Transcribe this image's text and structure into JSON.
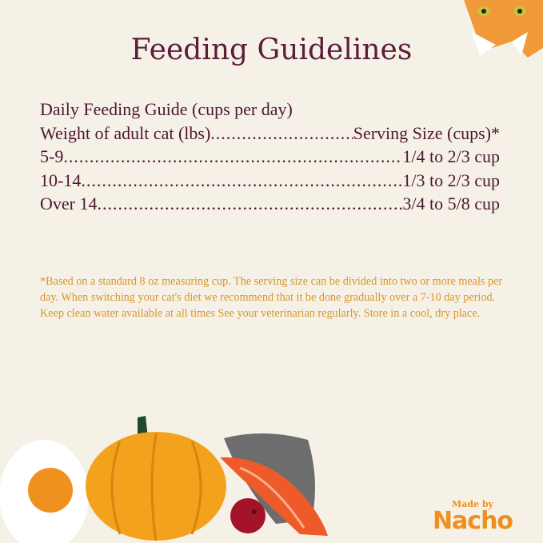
{
  "title": "Feeding Guidelines",
  "guide": {
    "heading": "Daily Feeding Guide (cups per day)",
    "header_left": "Weight of adult cat (lbs)",
    "header_right": "Serving Size (cups)*",
    "rows": [
      {
        "weight": "5-9",
        "serving": "1/4 to 2/3 cup"
      },
      {
        "weight": "10-14",
        "serving": "1/3 to 2/3 cup"
      },
      {
        "weight": "Over 14",
        "serving": "3/4 to 5/8 cup"
      }
    ]
  },
  "footnote": "*Based on a standard 8 oz measuring cup. The serving size can be divided into two or more meals per day. When switching your cat's diet we recommend that it be done gradually over a 7-10 day period. Keep clean water available at all times See your veterinarian regularly. Store in a cool, dry place.",
  "logo": {
    "made_by": "Made by",
    "brand": "Nacho"
  },
  "colors": {
    "background": "#f6f1e7",
    "title": "#5b1d3c",
    "footnote": "#d6962c",
    "brand": "#ee8f1e"
  },
  "illustrations": [
    "cat-face",
    "egg",
    "pumpkin",
    "fish-skin",
    "salmon",
    "cranberry"
  ]
}
